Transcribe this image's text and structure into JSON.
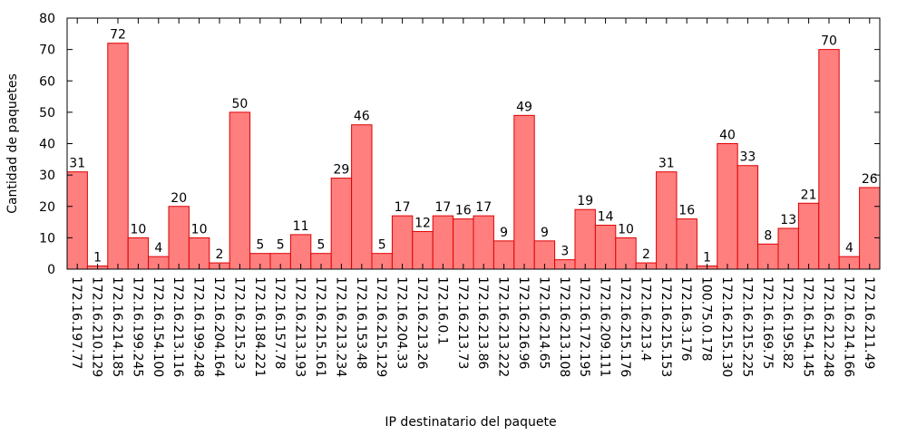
{
  "chart_data": {
    "type": "bar",
    "xlabel": "IP destinatario del paquete",
    "ylabel": "Cantidad de paquetes",
    "ylim": [
      0,
      80
    ],
    "yticks": [
      0,
      10,
      20,
      30,
      40,
      50,
      60,
      70,
      80
    ],
    "grid": false,
    "bar_color": "#ff7f7f",
    "bar_edge_color": "#e00000",
    "categories": [
      "172.16.197.77",
      "172.16.210.129",
      "172.16.214.185",
      "172.16.199.245",
      "172.16.154.100",
      "172.16.213.116",
      "172.16.199.248",
      "172.16.204.164",
      "172.16.215.23",
      "172.16.184.221",
      "172.16.157.78",
      "172.16.213.193",
      "172.16.215.161",
      "172.16.213.234",
      "172.16.153.48",
      "172.16.215.129",
      "172.16.204.33",
      "172.16.213.26",
      "172.16.0.1",
      "172.16.213.73",
      "172.16.213.86",
      "172.16.213.222",
      "172.16.216.96",
      "172.16.214.65",
      "172.16.213.108",
      "172.16.172.195",
      "172.16.209.111",
      "172.16.215.176",
      "172.16.213.4",
      "172.16.215.153",
      "172.16.3.176",
      "100.75.0.178",
      "172.16.215.130",
      "172.16.215.225",
      "172.16.169.75",
      "172.16.195.82",
      "172.16.154.145",
      "172.16.212.248",
      "172.16.214.166",
      "172.16.211.49"
    ],
    "values": [
      31,
      1,
      72,
      10,
      4,
      20,
      10,
      2,
      50,
      5,
      5,
      11,
      5,
      29,
      46,
      5,
      17,
      12,
      17,
      16,
      17,
      9,
      49,
      9,
      3,
      19,
      14,
      10,
      2,
      31,
      16,
      1,
      40,
      33,
      8,
      13,
      21,
      70,
      4,
      26
    ]
  }
}
